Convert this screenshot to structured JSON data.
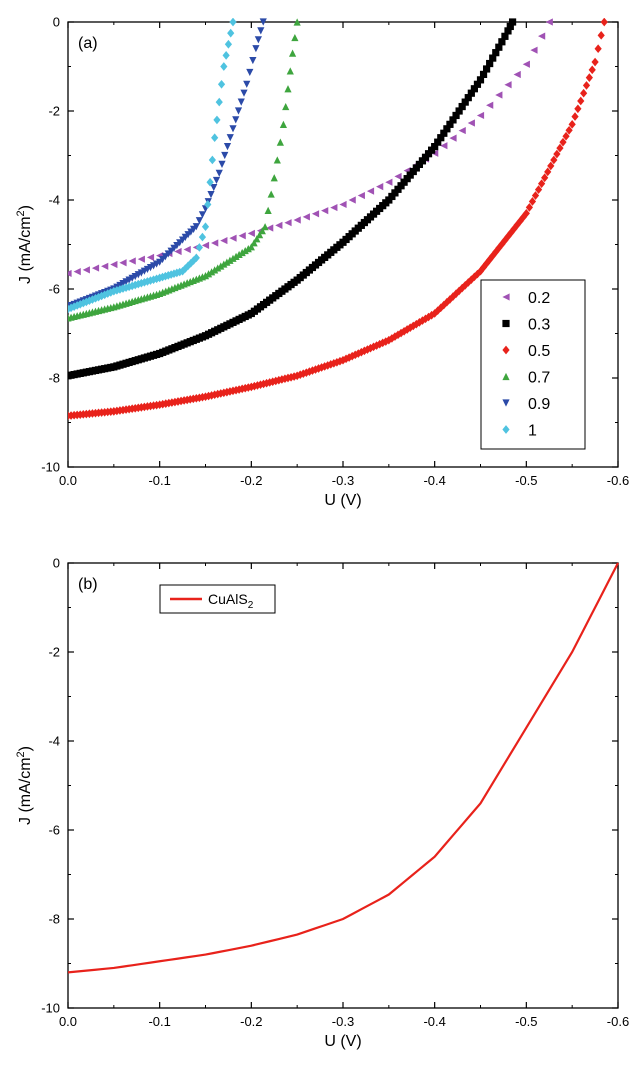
{
  "chart_data": [
    {
      "type": "scatter",
      "panel_label": "(a)",
      "xlabel": "U (V)",
      "ylabel": {
        "main": "J (mA/cm",
        "sup": "2",
        "close": ")"
      },
      "xlim": [
        0.0,
        -0.6
      ],
      "ylim": [
        -10,
        0
      ],
      "xticks": [
        "0.0",
        "-0.1",
        "-0.2",
        "-0.3",
        "-0.4",
        "-0.5",
        "-0.6"
      ],
      "yticks": [
        "0",
        "-2",
        "-4",
        "-6",
        "-8",
        "-10"
      ],
      "legend_position": "bottom-right",
      "series": [
        {
          "name": "0.2",
          "color": "#a052b4",
          "marker": "triangle-left",
          "x": [
            0,
            -0.05,
            -0.1,
            -0.15,
            -0.2,
            -0.25,
            -0.3,
            -0.35,
            -0.4,
            -0.45,
            -0.5,
            -0.525
          ],
          "y": [
            -5.65,
            -5.45,
            -5.25,
            -5.02,
            -4.75,
            -4.45,
            -4.1,
            -3.6,
            -2.95,
            -2.1,
            -0.95,
            0.0
          ]
        },
        {
          "name": "0.3",
          "color": "#000000",
          "marker": "square",
          "x": [
            0,
            -0.05,
            -0.1,
            -0.15,
            -0.2,
            -0.25,
            -0.3,
            -0.35,
            -0.4,
            -0.45,
            -0.48,
            -0.485
          ],
          "y": [
            -7.95,
            -7.75,
            -7.45,
            -7.05,
            -6.55,
            -5.8,
            -4.95,
            -4.0,
            -2.8,
            -1.3,
            -0.2,
            0.0
          ]
        },
        {
          "name": "0.5",
          "color": "#e8221b",
          "marker": "diamond",
          "x": [
            0,
            -0.05,
            -0.1,
            -0.15,
            -0.2,
            -0.25,
            -0.3,
            -0.35,
            -0.4,
            -0.45,
            -0.5,
            -0.55,
            -0.575,
            -0.585
          ],
          "y": [
            -8.85,
            -8.75,
            -8.6,
            -8.42,
            -8.2,
            -7.95,
            -7.6,
            -7.15,
            -6.55,
            -5.6,
            -4.3,
            -2.3,
            -0.9,
            0.0
          ]
        },
        {
          "name": "0.7",
          "color": "#3ea53e",
          "marker": "triangle-up",
          "x": [
            0,
            -0.05,
            -0.1,
            -0.15,
            -0.2,
            -0.215,
            -0.225,
            -0.235,
            -0.24,
            -0.245,
            -0.25
          ],
          "y": [
            -6.65,
            -6.4,
            -6.1,
            -5.7,
            -5.05,
            -4.6,
            -3.5,
            -2.3,
            -1.5,
            -0.7,
            0.0
          ]
        },
        {
          "name": "0.9",
          "color": "#2b4aa8",
          "marker": "triangle-down",
          "x": [
            0,
            -0.05,
            -0.1,
            -0.125,
            -0.14,
            -0.15,
            -0.165,
            -0.18,
            -0.195,
            -0.205,
            -0.213
          ],
          "y": [
            -6.4,
            -6.0,
            -5.4,
            -4.9,
            -4.6,
            -4.2,
            -3.4,
            -2.4,
            -1.4,
            -0.6,
            0.0
          ]
        },
        {
          "name": "1",
          "color": "#4fc3e0",
          "marker": "diamond",
          "x": [
            0,
            -0.05,
            -0.1,
            -0.125,
            -0.14,
            -0.15,
            -0.155,
            -0.16,
            -0.165,
            -0.17,
            -0.175,
            -0.18
          ],
          "y": [
            -6.45,
            -6.05,
            -5.75,
            -5.6,
            -5.3,
            -4.6,
            -3.6,
            -2.6,
            -1.8,
            -1.0,
            -0.5,
            0.0
          ]
        }
      ]
    },
    {
      "type": "line",
      "panel_label": "(b)",
      "xlabel": "U (V)",
      "ylabel": {
        "main": "J (mA/cm",
        "sup": "2",
        "close": ")"
      },
      "xlim": [
        0.0,
        -0.6
      ],
      "ylim": [
        -10,
        0
      ],
      "xticks": [
        "0.0",
        "-0.1",
        "-0.2",
        "-0.3",
        "-0.4",
        "-0.5",
        "-0.6"
      ],
      "yticks": [
        "0",
        "-2",
        "-4",
        "-6",
        "-8",
        "-10"
      ],
      "legend_position": "top-left",
      "series": [
        {
          "name": {
            "main": "CuAlS",
            "sub": "2"
          },
          "color": "#e8221b",
          "x": [
            0,
            -0.05,
            -0.1,
            -0.15,
            -0.2,
            -0.25,
            -0.3,
            -0.35,
            -0.4,
            -0.45,
            -0.5,
            -0.55,
            -0.6
          ],
          "y": [
            -9.2,
            -9.1,
            -8.95,
            -8.8,
            -8.6,
            -8.35,
            -8.0,
            -7.45,
            -6.6,
            -5.4,
            -3.7,
            -2.0,
            0.0
          ]
        }
      ]
    }
  ]
}
